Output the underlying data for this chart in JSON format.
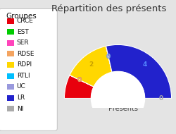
{
  "title": "Répartition des présents",
  "subtitle": "Présents",
  "groups": [
    "CRCE",
    "EST",
    "SER",
    "RDSE",
    "RDPI",
    "RTLI",
    "UC",
    "LR",
    "NI"
  ],
  "values": [
    1,
    0,
    0,
    0,
    2,
    0,
    0,
    4,
    0
  ],
  "colors": [
    "#e8000d",
    "#00cc00",
    "#ff44bb",
    "#f4a460",
    "#ffd700",
    "#00bfff",
    "#9999dd",
    "#2222cc",
    "#aaaaaa"
  ],
  "background_color": "#e4e4e4",
  "legend_bg": "#ffffff",
  "title_fontsize": 9.5,
  "legend_fontsize": 6.5,
  "label_colors": {
    "0_CRCE": "#e8000d",
    "4_RDPI": "#c8a000",
    "2_RDPI": "#c8a000",
    "7_LR": "#5588ff",
    "8_NI": "#aaaaaa",
    "1_EST": "#00cc00",
    "3_RDSE": "#f4a460",
    "5_RTLI": "#00bfff",
    "6_UC": "#9999dd"
  }
}
